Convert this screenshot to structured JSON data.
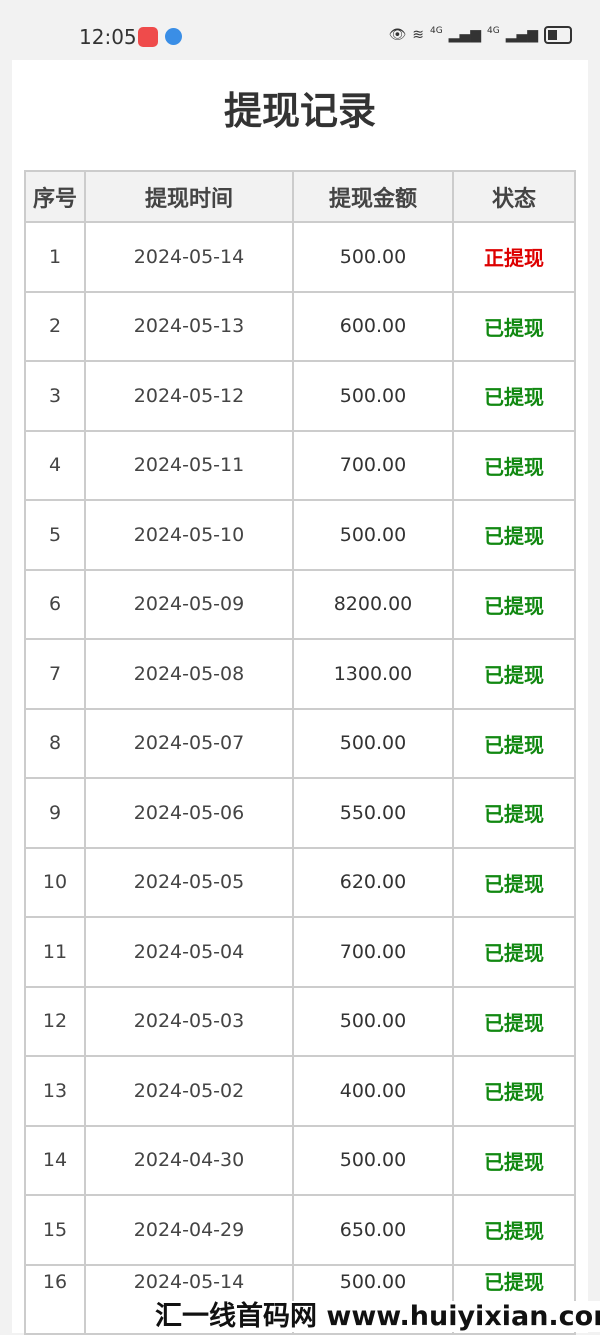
{
  "status_bar": {
    "time": "12:05",
    "network1": "4G",
    "network2": "4G"
  },
  "page": {
    "title": "提现记录"
  },
  "table": {
    "headers": [
      "序号",
      "提现时间",
      "提现金额",
      "状态"
    ],
    "status_colors": {
      "正提现": "#dd0000",
      "已提现": "#118811"
    },
    "rows": [
      {
        "no": "1",
        "date": "2024-05-14",
        "amount": "500.00",
        "status": "正提现"
      },
      {
        "no": "2",
        "date": "2024-05-13",
        "amount": "600.00",
        "status": "已提现"
      },
      {
        "no": "3",
        "date": "2024-05-12",
        "amount": "500.00",
        "status": "已提现"
      },
      {
        "no": "4",
        "date": "2024-05-11",
        "amount": "700.00",
        "status": "已提现"
      },
      {
        "no": "5",
        "date": "2024-05-10",
        "amount": "500.00",
        "status": "已提现"
      },
      {
        "no": "6",
        "date": "2024-05-09",
        "amount": "8200.00",
        "status": "已提现"
      },
      {
        "no": "7",
        "date": "2024-05-08",
        "amount": "1300.00",
        "status": "已提现"
      },
      {
        "no": "8",
        "date": "2024-05-07",
        "amount": "500.00",
        "status": "已提现"
      },
      {
        "no": "9",
        "date": "2024-05-06",
        "amount": "550.00",
        "status": "已提现"
      },
      {
        "no": "10",
        "date": "2024-05-05",
        "amount": "620.00",
        "status": "已提现"
      },
      {
        "no": "11",
        "date": "2024-05-04",
        "amount": "700.00",
        "status": "已提现"
      },
      {
        "no": "12",
        "date": "2024-05-03",
        "amount": "500.00",
        "status": "已提现"
      },
      {
        "no": "13",
        "date": "2024-05-02",
        "amount": "400.00",
        "status": "已提现"
      },
      {
        "no": "14",
        "date": "2024-04-30",
        "amount": "500.00",
        "status": "已提现"
      },
      {
        "no": "15",
        "date": "2024-04-29",
        "amount": "650.00",
        "status": "已提现"
      },
      {
        "no": "16",
        "date": "2024-05-14",
        "amount": "500.00",
        "status": "已提现"
      }
    ]
  },
  "watermark": "汇一线首码网 www.huiyixian.com"
}
